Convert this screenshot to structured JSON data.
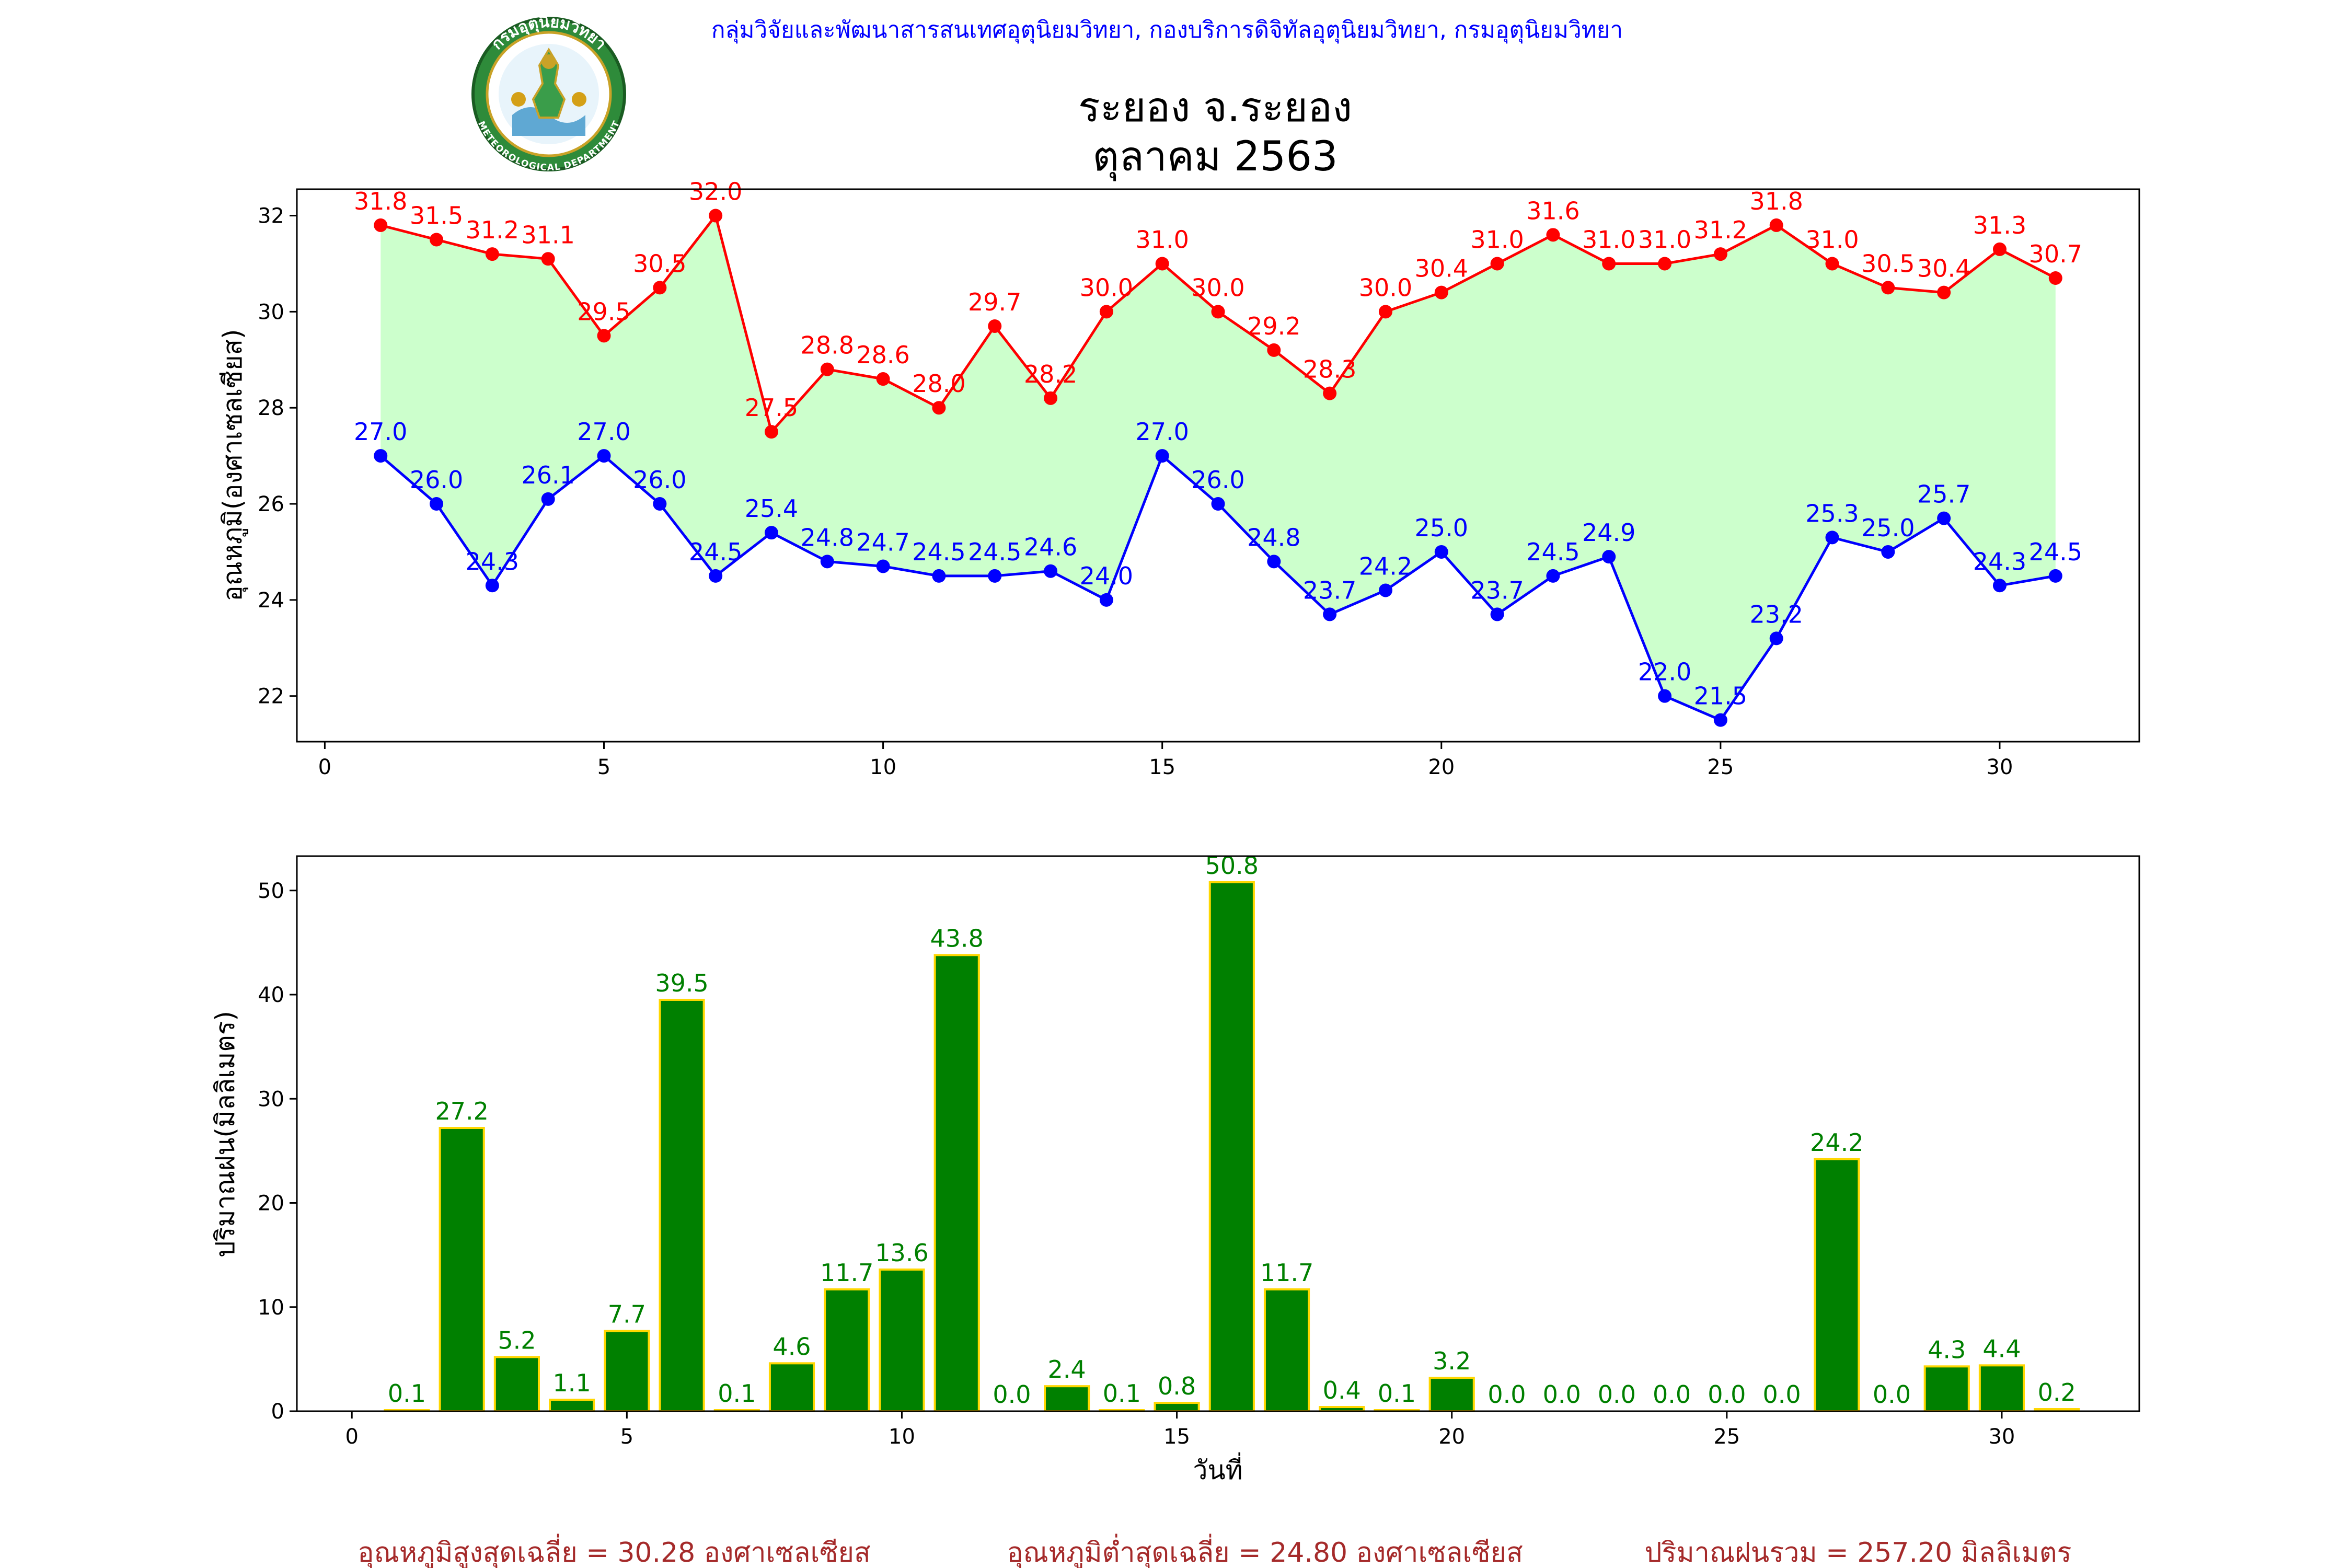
{
  "header": {
    "agency_line": "กลุ่มวิจัยและพัฒนาสารสนเทศอุตุนิยมวิทยา, กองบริการดิจิทัลอุตุนิยมวิทยา, กรมอุตุนิยมวิทยา",
    "logo": {
      "icon": "meteorological-department-seal-icon",
      "text_top": "กรมอุตุนิยมวิทยา",
      "text_bottom": "METEOROLOGICAL DEPARTMENT"
    }
  },
  "colors": {
    "max": "#ff0000",
    "min": "#0000ff",
    "fill": "#ccffcc",
    "rain": "#008000",
    "rain_edge": "#ffd700",
    "agency": "#0000ff",
    "summary": "#a52a2a"
  },
  "chart_data": [
    {
      "type": "line",
      "title": "ระยอง จ.ระยอง",
      "subtitle": "ตุลาคม 2563",
      "xlabel": "",
      "ylabel": "อุณหภูมิ(องศาเซลเซียส)",
      "xlim": [
        -0.5,
        32.5
      ],
      "ylim": [
        21.05,
        32.55
      ],
      "xticks": [
        0,
        5,
        10,
        15,
        20,
        25,
        30
      ],
      "yticks": [
        22,
        24,
        26,
        28,
        30,
        32
      ],
      "grid": false,
      "fill_between": "max-min",
      "x": [
        1,
        2,
        3,
        4,
        5,
        6,
        7,
        8,
        9,
        10,
        11,
        12,
        13,
        14,
        15,
        16,
        17,
        18,
        19,
        20,
        21,
        22,
        23,
        24,
        25,
        26,
        27,
        28,
        29,
        30,
        31
      ],
      "series": [
        {
          "key": "max",
          "values": [
            31.8,
            31.5,
            31.2,
            31.1,
            29.5,
            30.5,
            32.0,
            27.5,
            28.8,
            28.6,
            28.0,
            29.7,
            28.2,
            30.0,
            31.0,
            30.0,
            29.2,
            28.3,
            30.0,
            30.4,
            31.0,
            31.6,
            31.0,
            31.0,
            31.2,
            31.8,
            31.0,
            30.5,
            30.4,
            31.3,
            30.7
          ]
        },
        {
          "key": "min",
          "values": [
            27.0,
            26.0,
            24.3,
            26.1,
            27.0,
            26.0,
            24.5,
            25.4,
            24.8,
            24.7,
            24.5,
            24.5,
            24.6,
            24.0,
            27.0,
            26.0,
            24.8,
            23.7,
            24.2,
            25.0,
            23.7,
            24.5,
            24.9,
            22.0,
            21.5,
            23.2,
            25.3,
            25.0,
            25.7,
            24.3,
            24.5
          ]
        }
      ]
    },
    {
      "type": "bar",
      "xlabel": "วันที่",
      "ylabel": "ปริมาณฝน(มิลลิเมตร)",
      "xlim": [
        -1,
        32.5
      ],
      "ylim": [
        0,
        53.3
      ],
      "xticks": [
        0,
        5,
        10,
        15,
        20,
        25,
        30
      ],
      "yticks": [
        0,
        10,
        20,
        30,
        40,
        50
      ],
      "grid": false,
      "x": [
        1,
        2,
        3,
        4,
        5,
        6,
        7,
        8,
        9,
        10,
        11,
        12,
        13,
        14,
        15,
        16,
        17,
        18,
        19,
        20,
        21,
        22,
        23,
        24,
        25,
        26,
        27,
        28,
        29,
        30,
        31
      ],
      "values": [
        0.1,
        27.2,
        5.2,
        1.1,
        7.7,
        39.5,
        0.1,
        4.6,
        11.7,
        13.6,
        43.8,
        0.0,
        2.4,
        0.1,
        0.8,
        50.8,
        11.7,
        0.4,
        0.1,
        3.2,
        0.0,
        0.0,
        0.0,
        0.0,
        0.0,
        0.0,
        24.2,
        0.0,
        4.3,
        4.4,
        0.2
      ]
    }
  ],
  "summary": {
    "avg_max": "อุณหภูมิสูงสุดเฉลี่ย = 30.28 องศาเซลเซียส",
    "avg_min": "อุณหภูมิต่ำสุดเฉลี่ย = 24.80 องศาเซลเซียส",
    "total_rain": "ปริมาณฝนรวม = 257.20 มิลลิเมตร"
  }
}
